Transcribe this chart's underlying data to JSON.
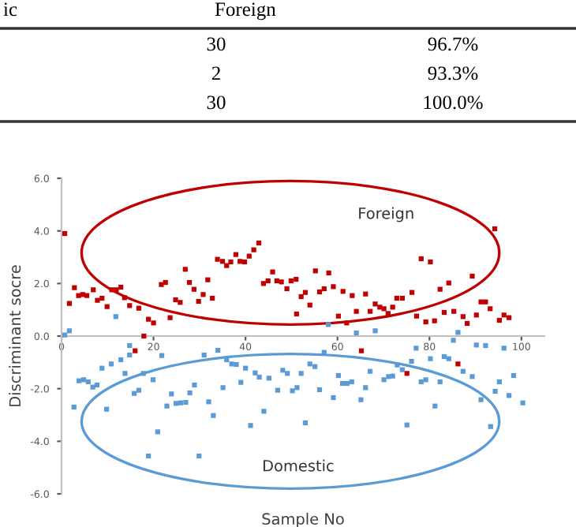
{
  "chart_data": [
    {
      "type": "other",
      "annotations": [
        "ic",
        "Foreign",
        "30",
        "96.7%",
        "2",
        "93.3%",
        "30",
        "100.0%"
      ]
    },
    {
      "type": "scatter",
      "xlabel": "Sample No",
      "ylabel": "Discriminant socre",
      "marker": "square",
      "grid": false,
      "legend": false,
      "xlim": [
        0,
        105
      ],
      "xticks": [
        0,
        20,
        40,
        60,
        80,
        100
      ],
      "ylim": [
        -6,
        6
      ],
      "yticks": [
        {
          "value": 6,
          "label": "6.0"
        },
        {
          "value": 4,
          "label": "4.0"
        },
        {
          "value": 2,
          "label": "2.0"
        },
        {
          "value": 0,
          "label": "0.0"
        },
        {
          "value": -2,
          "label": "-2.0"
        },
        {
          "value": -4,
          "label": "-4.0"
        },
        {
          "value": -6,
          "label": "-6.0"
        }
      ],
      "series": [
        {
          "name": "Foreign",
          "color": "#c00000",
          "x": [
            0.7,
            1.7,
            2.8,
            3.7,
            4.6,
            5.5,
            6.9,
            7.8,
            8.8,
            9.9,
            10.9,
            11.9,
            12.9,
            13.7,
            14.8,
            16,
            16.8,
            17.9,
            18.9,
            20,
            21.7,
            22.6,
            23.6,
            24.8,
            25.8,
            26.9,
            27.8,
            28.8,
            29.8,
            30.8,
            31.8,
            32.8,
            33.9,
            35,
            35.9,
            36.8,
            37.9,
            38.8,
            39.8,
            40.8,
            41.8,
            42.9,
            43.9,
            44.9,
            45.9,
            46.8,
            47.8,
            49,
            49.9,
            51,
            51.1,
            52.1,
            53,
            54,
            55.2,
            56.1,
            57.1,
            58.1,
            59.1,
            60.2,
            61.2,
            62,
            63.2,
            64.1,
            65.2,
            66.1,
            67.1,
            68.2,
            69.2,
            70.1,
            71,
            72,
            72.9,
            74.1,
            75.1,
            76.2,
            77.2,
            78.2,
            79.2,
            80.2,
            81.1,
            82.3,
            83.2,
            84.2,
            85.3,
            86.2,
            87.3,
            88.2,
            89.3,
            90.2,
            91.2,
            92.2,
            93.2,
            94.2,
            95.2,
            96.2,
            97.3
          ],
          "values": [
            3.9,
            1.24,
            1.84,
            1.54,
            1.58,
            1.54,
            1.76,
            1.36,
            1.44,
            1.12,
            1.76,
            1.76,
            1.86,
            1.46,
            1.16,
            -0.56,
            1.06,
            0.0,
            0.64,
            0.5,
            1.96,
            2.04,
            0.7,
            1.38,
            1.28,
            2.54,
            2.04,
            1.78,
            1.32,
            1.58,
            2.14,
            1.44,
            2.92,
            2.84,
            2.68,
            2.82,
            3.1,
            2.84,
            2.82,
            3.04,
            3.28,
            3.54,
            2.0,
            2.1,
            2.44,
            2.1,
            2.06,
            1.8,
            2.1,
            2.16,
            0.84,
            1.5,
            1.66,
            1.18,
            2.48,
            1.68,
            1.8,
            2.4,
            1.88,
            0.76,
            1.7,
            0.5,
            1.54,
            0.94,
            -0.56,
            1.6,
            0.94,
            1.22,
            1.1,
            1.04,
            0.86,
            1.1,
            1.44,
            1.44,
            -1.42,
            1.66,
            0.76,
            2.94,
            0.54,
            2.82,
            0.58,
            1.78,
            0.9,
            2.02,
            0.94,
            -1.06,
            0.74,
            0.48,
            2.28,
            0.8,
            1.3,
            1.3,
            1.04,
            4.08,
            0.6,
            0.8,
            0.7
          ]
        },
        {
          "name": "Domestic",
          "color": "#5b9bd5",
          "x": [
            0.7,
            1.7,
            2.7,
            3.8,
            4.8,
            5.8,
            6.8,
            7.7,
            8.8,
            9.8,
            10.8,
            11.8,
            12.9,
            13.8,
            14.8,
            14.8,
            15.8,
            16.8,
            17.8,
            18.9,
            19.9,
            20.9,
            21.8,
            22.9,
            23.9,
            24.9,
            25.9,
            27,
            27.9,
            28.9,
            29.9,
            31,
            32,
            33,
            34,
            35.1,
            35.9,
            37,
            38,
            39,
            40,
            41.1,
            42.1,
            43,
            44,
            45.1,
            47,
            48.1,
            49.1,
            50.2,
            51.2,
            52.1,
            53,
            54,
            55.1,
            56.1,
            57.1,
            58,
            59.1,
            60.2,
            61.1,
            62.1,
            63.1,
            64.1,
            65.1,
            66.1,
            67.1,
            68.2,
            70.1,
            71.1,
            72,
            73,
            74.1,
            75.1,
            76.1,
            77.1,
            78.2,
            79.2,
            80.2,
            81.2,
            82.3,
            83.2,
            84.2,
            85.2,
            86.2,
            87.3,
            89.3,
            90.2,
            91.2,
            92.2,
            93.3,
            94.3,
            95.2,
            96.2,
            97.3,
            98.3,
            100.3
          ],
          "values": [
            0.04,
            0.2,
            -2.7,
            -1.7,
            -1.66,
            -1.74,
            -1.94,
            -1.86,
            -1.22,
            -2.78,
            -1.06,
            0.74,
            -0.9,
            -1.42,
            -0.36,
            -0.72,
            -2.18,
            -2.06,
            -1.42,
            -4.56,
            -1.66,
            -3.64,
            -0.74,
            -2.66,
            -2.2,
            -2.56,
            -2.54,
            -2.52,
            -2.16,
            -1.86,
            -4.56,
            -0.72,
            -2.5,
            -3.02,
            -0.54,
            -1.96,
            -0.9,
            -1.06,
            -1.08,
            -1.76,
            -1.22,
            -3.4,
            -1.4,
            -1.56,
            -2.86,
            -1.6,
            -2.06,
            -1.3,
            -1.42,
            -2.08,
            -1.96,
            -1.42,
            -3.3,
            -1.06,
            -1.16,
            -2.04,
            -0.62,
            0.44,
            -2.34,
            -1.5,
            -1.8,
            -1.8,
            -1.74,
            0.12,
            -2.42,
            -1.96,
            -1.34,
            0.2,
            -1.66,
            -1.54,
            -1.52,
            -1.1,
            -1.28,
            -3.38,
            -0.96,
            -0.46,
            -1.74,
            -1.66,
            -0.86,
            -2.66,
            -1.74,
            -0.78,
            -0.86,
            -0.16,
            0.14,
            -1.34,
            -1.54,
            -0.34,
            -2.42,
            -0.36,
            -3.44,
            -2.1,
            -1.74,
            -0.46,
            -2.26,
            -1.5,
            -2.54
          ]
        }
      ]
    }
  ]
}
